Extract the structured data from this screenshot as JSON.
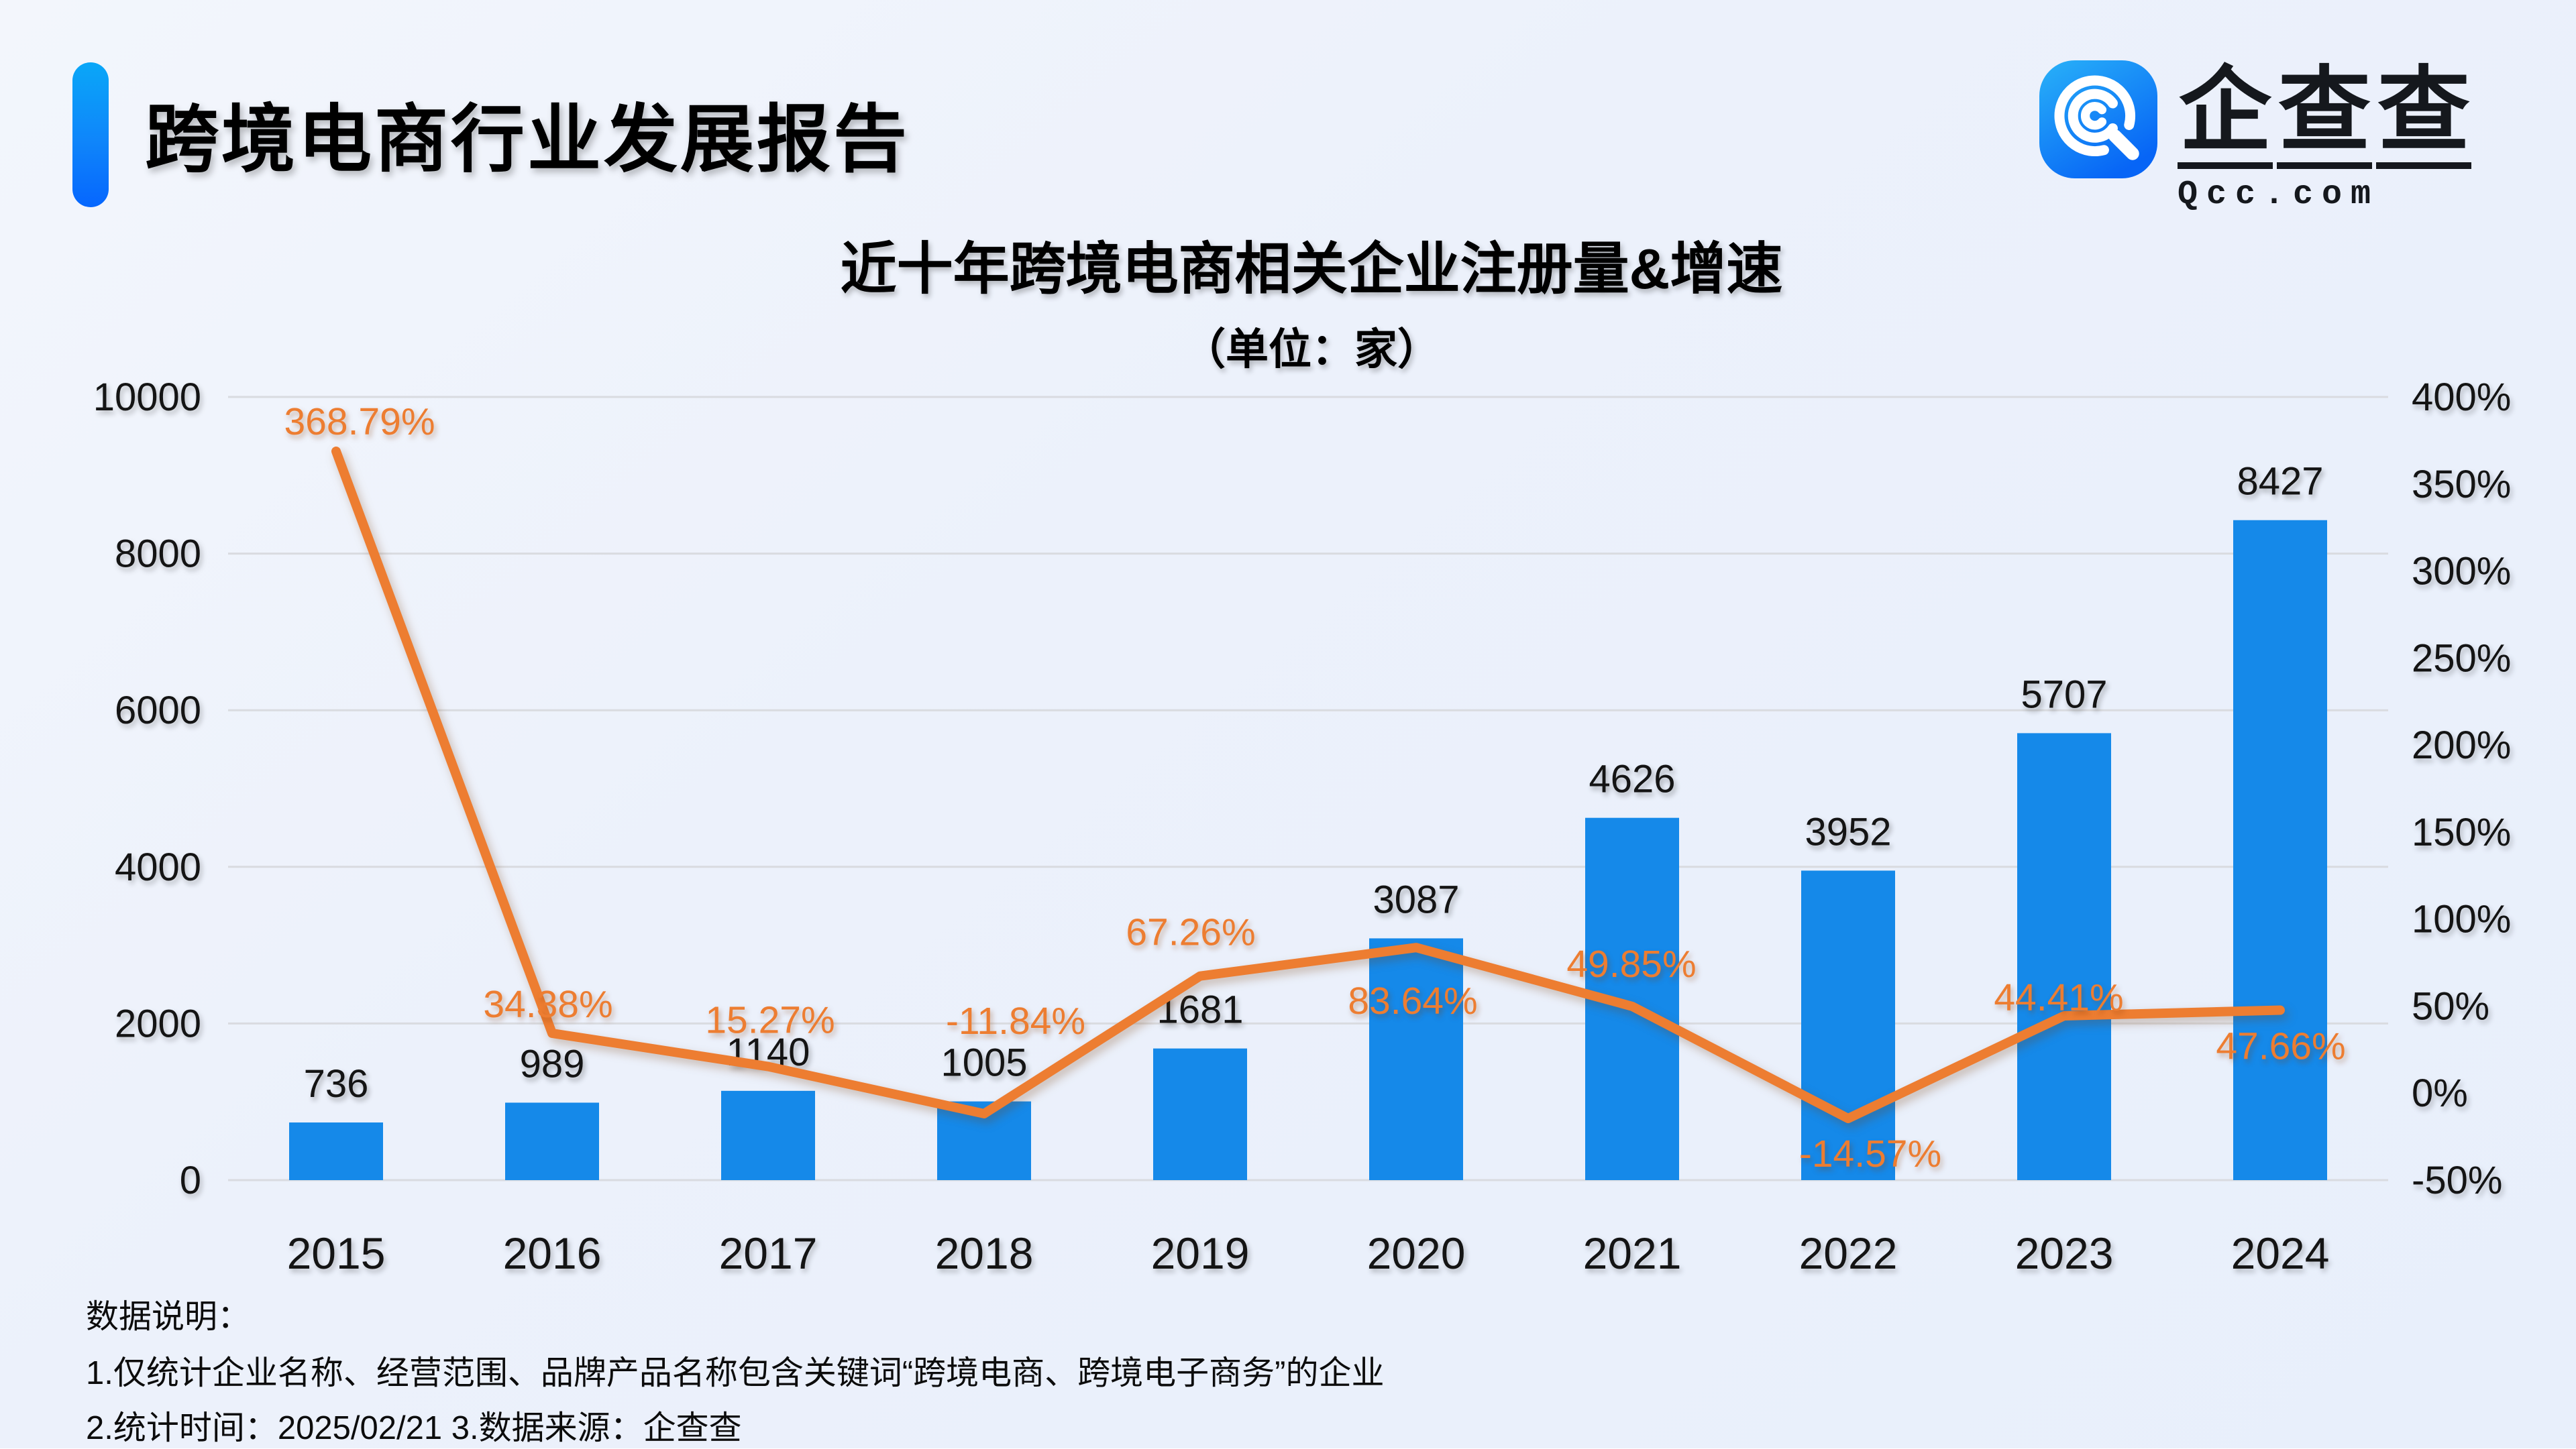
{
  "header": {
    "title": "跨境电商行业发展报告"
  },
  "logo": {
    "chars": [
      "企",
      "查",
      "查"
    ],
    "domain": "Qcc.com",
    "icon_color_top": "#29b2f8",
    "icon_color_bottom": "#0765f6"
  },
  "chart_data": {
    "type": "bar",
    "title": "近十年跨境电商相关企业注册量&增速",
    "subtitle": "（单位：家）",
    "categories": [
      "2015",
      "2016",
      "2017",
      "2018",
      "2019",
      "2020",
      "2021",
      "2022",
      "2023",
      "2024"
    ],
    "series": [
      {
        "name": "注册量",
        "type": "bar",
        "values": [
          736,
          989,
          1140,
          1005,
          1681,
          3087,
          4626,
          3952,
          5707,
          8427
        ],
        "color": "#1589e9"
      },
      {
        "name": "增速",
        "type": "line",
        "values": [
          368.79,
          34.38,
          15.27,
          -11.84,
          67.26,
          83.64,
          49.85,
          -14.57,
          44.41,
          47.66
        ],
        "labels": [
          "368.79%",
          "34.38%",
          "15.27%",
          "-11.84%",
          "67.26%",
          "83.64%",
          "49.85%",
          "-14.57%",
          "44.41%",
          "47.66%"
        ],
        "label_offsets": [
          [
            35,
            -45
          ],
          [
            -6,
            -44
          ],
          [
            3,
            -70
          ],
          [
            47,
            -139
          ],
          [
            -14,
            -66
          ],
          [
            -5,
            79
          ],
          [
            -1,
            -64
          ],
          [
            33,
            52
          ],
          [
            -8,
            -28
          ],
          [
            1,
            53
          ]
        ],
        "color": "#ed7d31"
      }
    ],
    "left_axis": {
      "min": 0,
      "max": 10000,
      "ticks": [
        "0",
        "2000",
        "4000",
        "6000",
        "8000",
        "10000"
      ]
    },
    "right_axis": {
      "min": -50,
      "max": 400,
      "ticks": [
        "-50%",
        "0%",
        "50%",
        "100%",
        "150%",
        "200%",
        "250%",
        "300%",
        "350%",
        "400%"
      ]
    },
    "grid": true,
    "gridline_color": "#d9dbe0",
    "legend_position": "none"
  },
  "notes": {
    "heading": "数据说明：",
    "line1": "1.仅统计企业名称、经营范围、品牌产品名称包含关键词“跨境电商、跨境电子商务”的企业",
    "line2": "2.统计时间：2025/02/21   3.数据来源：企查查"
  }
}
